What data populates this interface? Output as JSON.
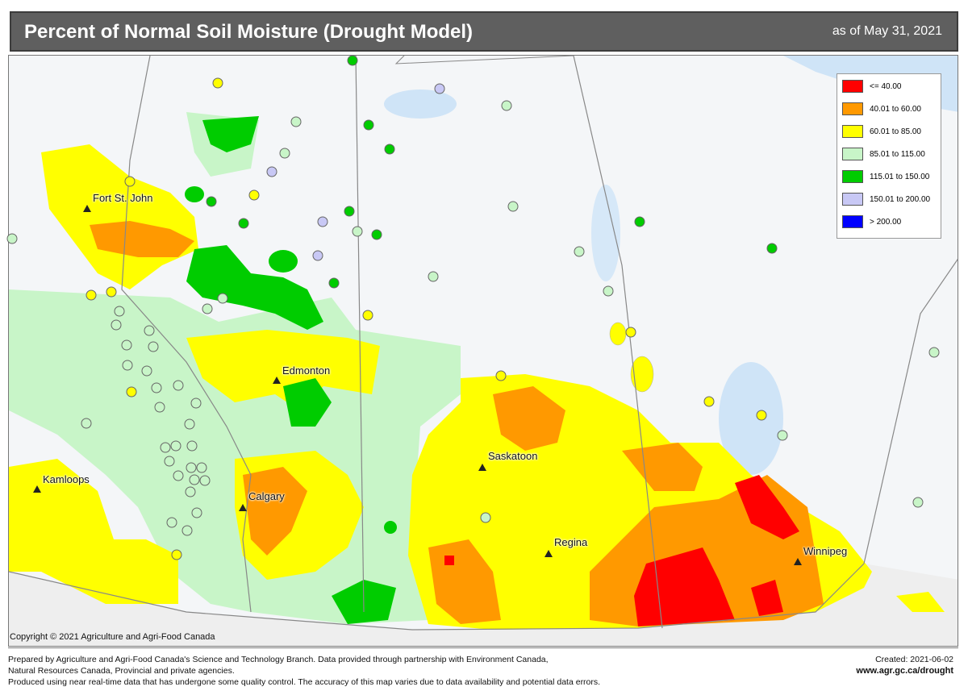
{
  "header": {
    "title": "Percent of Normal Soil Moisture (Drought Model)",
    "as_of": "as of May 31, 2021"
  },
  "legend": {
    "items": [
      {
        "label": "<= 40.00",
        "color": "#ff0000"
      },
      {
        "label": "40.01  to  60.00",
        "color": "#ff9900"
      },
      {
        "label": "60.01  to  85.00",
        "color": "#ffff00"
      },
      {
        "label": "85.01  to  115.00",
        "color": "#c8f5c8"
      },
      {
        "label": "115.01  to  150.00",
        "color": "#00cc00"
      },
      {
        "label": "150.01  to  200.00",
        "color": "#c8c8f5"
      },
      {
        "label": "> 200.00",
        "color": "#0000ff"
      }
    ]
  },
  "cities": [
    {
      "name": "Fort St. John"
    },
    {
      "name": "Edmonton"
    },
    {
      "name": "Kamloops"
    },
    {
      "name": "Calgary"
    },
    {
      "name": "Saskatoon"
    },
    {
      "name": "Regina"
    },
    {
      "name": "Winnipeg"
    }
  ],
  "copyright": "Copyright © 2021 Agriculture and Agri-Food Canada",
  "footer": {
    "line1": "Prepared by Agriculture and Agri-Food Canada's Science and Technology Branch. Data provided through partnership with Environment Canada,",
    "line2": "Natural Resources Canada, Provincial and private agencies.",
    "line3": "Produced using near real-time data that has undergone some quality control. The accuracy of this map varies due to data availability and potential data errors.",
    "created": "Created: 2021-06-02",
    "url": "www.agr.gc.ca/drought"
  }
}
